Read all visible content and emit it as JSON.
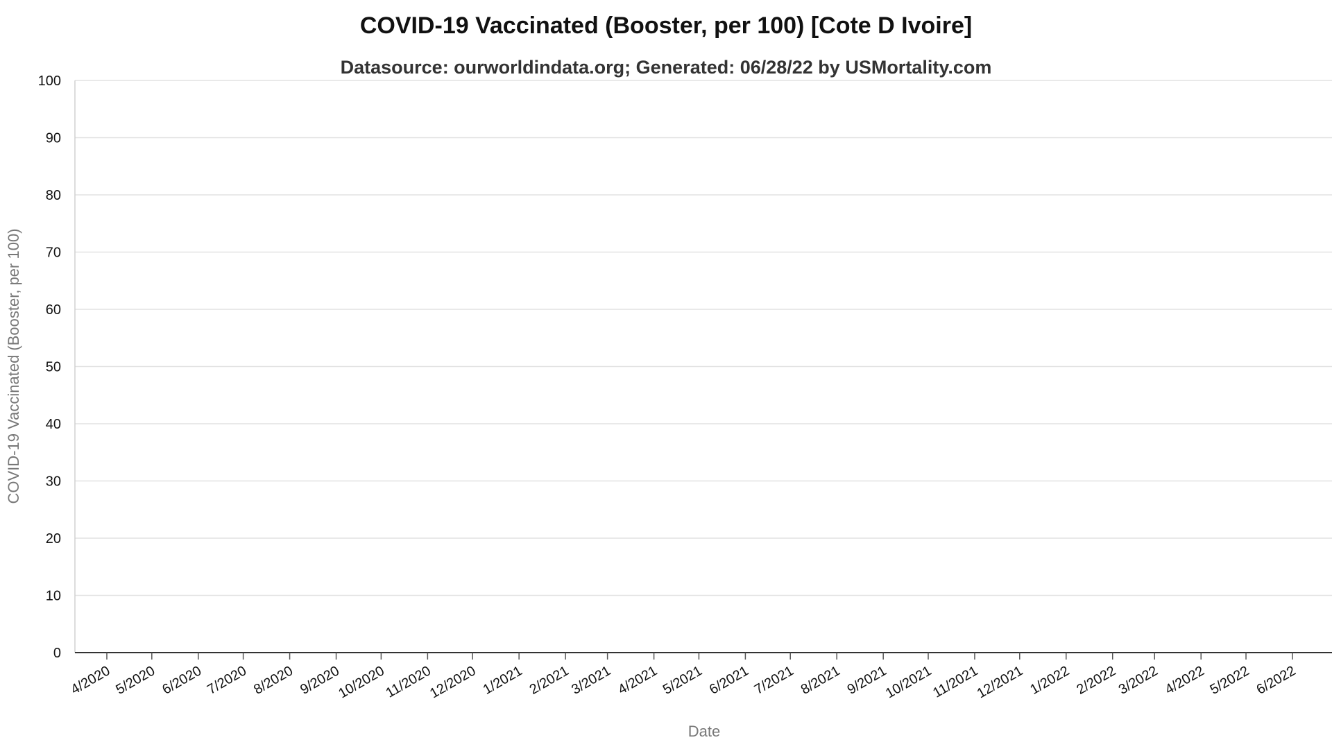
{
  "chart_data": {
    "type": "line",
    "title": "COVID-19 Vaccinated (Booster, per 100) [Cote D Ivoire]",
    "subtitle": "Datasource: ourworldindata.org; Generated: 06/28/22 by USMortality.com",
    "xlabel": "Date",
    "ylabel": "COVID-19 Vaccinated (Booster, per 100)",
    "ylim": [
      0,
      100
    ],
    "yticks": [
      0,
      10,
      20,
      30,
      40,
      50,
      60,
      70,
      80,
      90,
      100
    ],
    "xticks": [
      "4/2020",
      "5/2020",
      "6/2020",
      "7/2020",
      "8/2020",
      "9/2020",
      "10/2020",
      "11/2020",
      "12/2020",
      "1/2021",
      "2/2021",
      "3/2021",
      "4/2021",
      "5/2021",
      "6/2021",
      "7/2021",
      "8/2021",
      "9/2021",
      "10/2021",
      "11/2021",
      "12/2021",
      "1/2022",
      "2/2022",
      "3/2022",
      "4/2022",
      "5/2022",
      "6/2022"
    ],
    "grid": true,
    "series": []
  }
}
